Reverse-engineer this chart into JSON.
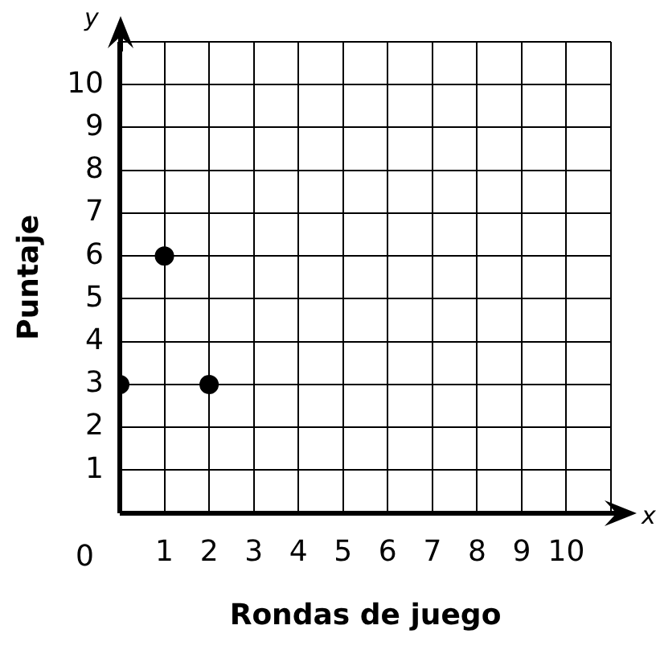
{
  "chart_data": {
    "type": "scatter",
    "xlabel": "Rondas de juego",
    "ylabel": "Puntaje",
    "x": [
      0,
      1,
      2
    ],
    "series": [
      {
        "color": "#000000",
        "values": [
          3,
          6,
          3
        ]
      }
    ],
    "xlim": [
      0,
      11
    ],
    "ylim": [
      0,
      11
    ],
    "xticks": [
      {
        "value": 0,
        "label": null
      },
      1,
      2,
      3,
      4,
      5,
      6,
      7,
      8,
      9,
      10,
      {
        "value": 11,
        "label": null
      }
    ],
    "yticks": [
      {
        "value": 0,
        "label": null
      },
      1,
      2,
      3,
      4,
      5,
      6,
      7,
      8,
      9,
      10,
      {
        "value": 11,
        "label": null
      }
    ],
    "annotations": [
      "0",
      "x",
      "y"
    ],
    "grid": true,
    "legend": false,
    "marker": "circle"
  }
}
